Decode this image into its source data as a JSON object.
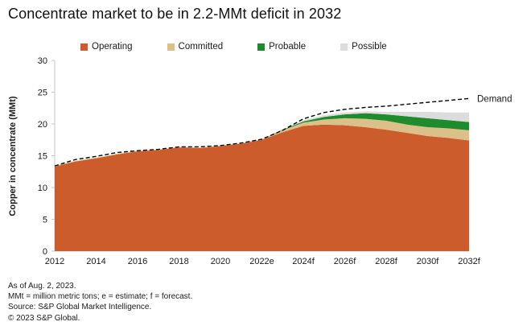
{
  "title": "Concentrate market to be in 2.2-MMt deficit in 2032",
  "colors": {
    "axis": "#c6c6c6",
    "text": "#1a1a1a",
    "demand_line": "#000000"
  },
  "footnotes": [
    "As of Aug. 2, 2023.",
    "MMt = million metric tons; e = estimate; f = forecast.",
    "Source: S&P Global Market Intelligence.",
    "© 2023 S&P Global."
  ],
  "chart_data": {
    "type": "area",
    "stacked": true,
    "title": "Concentrate market to be in 2.2-MMt deficit in 2032",
    "ylabel": "Copper in concentrate (MMt)",
    "xlabel": "",
    "ylim": [
      0,
      30
    ],
    "yticks": [
      0,
      5,
      10,
      15,
      20,
      25,
      30
    ],
    "grid": false,
    "legend_position": "top",
    "x": [
      2012,
      2013,
      2014,
      2015,
      2016,
      2017,
      2018,
      2019,
      2020,
      2021,
      2022,
      2023,
      2024,
      2025,
      2026,
      2027,
      2028,
      2029,
      2030,
      2031,
      2032
    ],
    "xticklabels": [
      "2012",
      "2014",
      "2016",
      "2018",
      "2020",
      "2022e",
      "2024f",
      "2026f",
      "2028f",
      "2030f",
      "2032f"
    ],
    "series": [
      {
        "name": "Operating",
        "color": "#cc5c2c",
        "values": [
          13.3,
          14.1,
          14.6,
          15.2,
          15.7,
          15.9,
          16.3,
          16.2,
          16.5,
          16.9,
          17.5,
          18.7,
          19.7,
          19.9,
          19.8,
          19.5,
          19.1,
          18.6,
          18.1,
          17.8,
          17.4
        ]
      },
      {
        "name": "Committed",
        "color": "#dcc08a",
        "values": [
          0.1,
          0.1,
          0.1,
          0.1,
          0.1,
          0.1,
          0.1,
          0.1,
          0.1,
          0.1,
          0.1,
          0.3,
          0.5,
          0.8,
          1.1,
          1.3,
          1.4,
          1.3,
          1.4,
          1.5,
          1.6
        ]
      },
      {
        "name": "Probable",
        "color": "#1e8c2d",
        "values": [
          0,
          0,
          0,
          0,
          0,
          0,
          0,
          0,
          0,
          0,
          0,
          0.1,
          0.2,
          0.4,
          0.6,
          0.9,
          1.0,
          1.3,
          1.4,
          1.3,
          1.3
        ]
      },
      {
        "name": "Possible",
        "color": "#dcdcdc",
        "values": [
          0,
          0,
          0,
          0,
          0,
          0,
          0,
          0,
          0,
          0,
          0,
          0,
          0.2,
          0.3,
          0.3,
          0.3,
          0.4,
          0.7,
          1.0,
          1.2,
          1.5
        ]
      }
    ],
    "line_series": {
      "name": "Demand",
      "label": "Demand",
      "color": "#000000",
      "style": "dashed",
      "values": [
        13.4,
        14.4,
        14.9,
        15.5,
        15.8,
        16.0,
        16.4,
        16.4,
        16.6,
        17.0,
        17.6,
        19.0,
        20.8,
        21.8,
        22.3,
        22.6,
        22.8,
        23.1,
        23.4,
        23.7,
        24.0
      ]
    }
  }
}
